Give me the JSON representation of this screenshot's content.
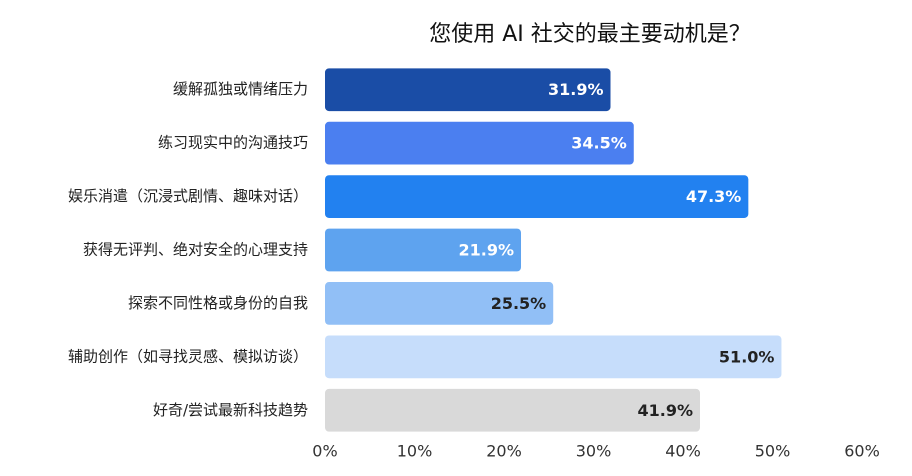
{
  "chart_data": {
    "type": "bar",
    "orientation": "horizontal",
    "title": "您使用 AI 社交的最主要动机是？",
    "categories": [
      "缓解孤独或情绪压力",
      "练习现实中的沟通技巧",
      "娱乐消遣（沉浸式剧情、趣味对话）",
      "获得无评判、绝对安全的心理支持",
      "探索不同性格或身份的自我",
      "辅助创作（如寻找灵感、模拟访谈）",
      "好奇/尝试最新科技趋势"
    ],
    "values": [
      31.9,
      34.5,
      47.3,
      21.9,
      25.5,
      51.0,
      41.9
    ],
    "value_labels": [
      "31.9%",
      "34.5%",
      "47.3%",
      "21.9%",
      "25.5%",
      "51.0%",
      "41.9%"
    ],
    "colors": [
      "#1a4da6",
      "#4b7ff0",
      "#2281f0",
      "#5ea3ef",
      "#91bff6",
      "#c6ddfb",
      "#d9d9d9"
    ],
    "value_label_colors": [
      "#ffffff",
      "#ffffff",
      "#ffffff",
      "#ffffff",
      "#222222",
      "#222222",
      "#222222"
    ],
    "xlim": [
      0,
      60
    ],
    "xticks": [
      {
        "value": 0,
        "label": "0%"
      },
      {
        "value": 10,
        "label": "10%"
      },
      {
        "value": 20,
        "label": "20%"
      },
      {
        "value": 30,
        "label": "30%"
      },
      {
        "value": 40,
        "label": "40%"
      },
      {
        "value": 50,
        "label": "50%"
      },
      {
        "value": 60,
        "label": "60%"
      }
    ],
    "grid": false
  }
}
